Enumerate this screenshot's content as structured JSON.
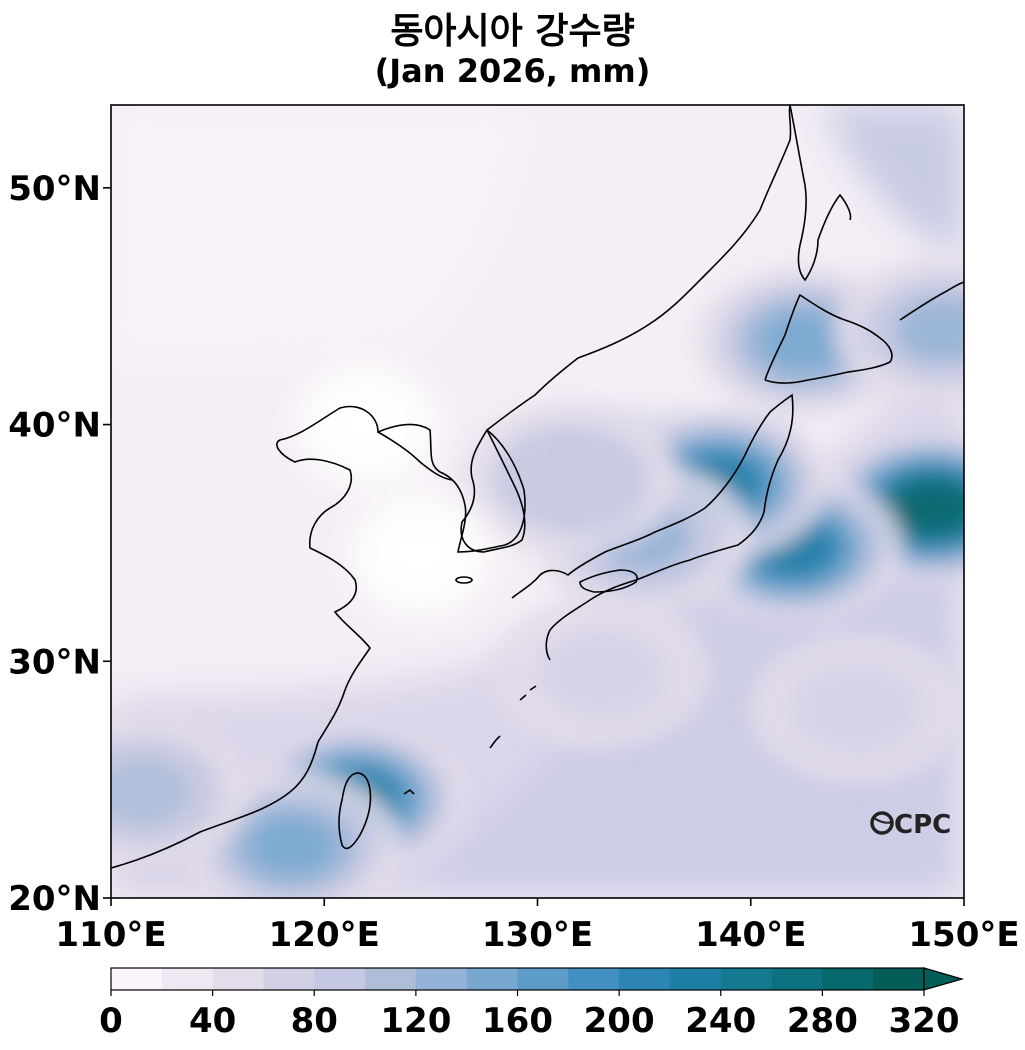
{
  "title_line1": "동아시아 강수량",
  "title_line2": "(Jan 2026, mm)",
  "logo_text": "CPC",
  "axes": {
    "lon_range": [
      110,
      150
    ],
    "lat_range": [
      20,
      53.5
    ],
    "x_ticks": [
      110,
      120,
      130,
      140,
      150
    ],
    "x_tick_labels": [
      "110°E",
      "120°E",
      "130°E",
      "140°E",
      "150°E"
    ],
    "y_ticks": [
      20,
      30,
      40,
      50
    ],
    "y_tick_labels": [
      "20°N",
      "30°N",
      "40°N",
      "50°N"
    ]
  },
  "colorbar": {
    "min": 0,
    "max": 320,
    "step": 20,
    "tick_values": [
      0,
      40,
      80,
      120,
      160,
      200,
      240,
      280,
      320
    ],
    "tick_labels": [
      "0",
      "40",
      "80",
      "120",
      "160",
      "200",
      "240",
      "280",
      "320"
    ],
    "colors": [
      "#fbf4fa",
      "#efe8f2",
      "#e3dcea",
      "#d3d1e6",
      "#c4c8e2",
      "#aebed9",
      "#95b3d6",
      "#78a8d0",
      "#5d9cc8",
      "#4290c2",
      "#2c85b4",
      "#1e7fa5",
      "#137a92",
      "#0c727f",
      "#07696c",
      "#045d57"
    ],
    "extend": "max"
  },
  "precip_centers": [
    {
      "lon": 148.5,
      "lat": 36.5,
      "value": 285
    },
    {
      "lon": 142.0,
      "lat": 34.8,
      "value": 230
    },
    {
      "lon": 138.5,
      "lat": 37.5,
      "value": 230
    },
    {
      "lon": 121.5,
      "lat": 24.2,
      "value": 240
    },
    {
      "lon": 118.5,
      "lat": 22.2,
      "value": 140
    },
    {
      "lon": 111.5,
      "lat": 24.5,
      "value": 110
    },
    {
      "lon": 133.0,
      "lat": 29.5,
      "value": 70
    },
    {
      "lon": 142.5,
      "lat": 43.5,
      "value": 150
    },
    {
      "lon": 149.0,
      "lat": 44.0,
      "value": 120
    },
    {
      "lon": 135.0,
      "lat": 35.2,
      "value": 120
    },
    {
      "lon": 131.5,
      "lat": 37.7,
      "value": 90
    },
    {
      "lon": 145.0,
      "lat": 28.0,
      "value": 70
    }
  ],
  "dry_centers": [
    {
      "lon": 124.5,
      "lat": 34.5
    },
    {
      "lon": 122.0,
      "lat": 40.0
    }
  ]
}
